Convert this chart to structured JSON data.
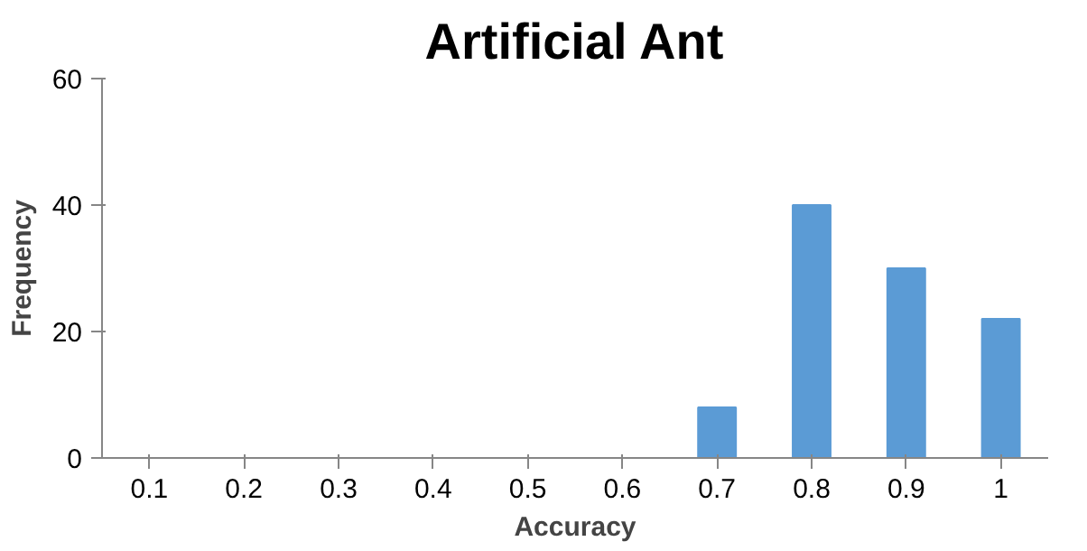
{
  "chart_data": {
    "type": "bar",
    "title": "Artificial Ant",
    "xlabel": "Accuracy",
    "ylabel": "Frequency",
    "categories": [
      "0.1",
      "0.2",
      "0.3",
      "0.4",
      "0.5",
      "0.6",
      "0.7",
      "0.8",
      "0.9",
      "1"
    ],
    "values": [
      0,
      0,
      0,
      0,
      0,
      0,
      8,
      40,
      30,
      22
    ],
    "color": "#5b9bd5",
    "ylim": [
      0,
      60
    ],
    "yticks": [
      0,
      20,
      40,
      60
    ],
    "grid": false
  }
}
